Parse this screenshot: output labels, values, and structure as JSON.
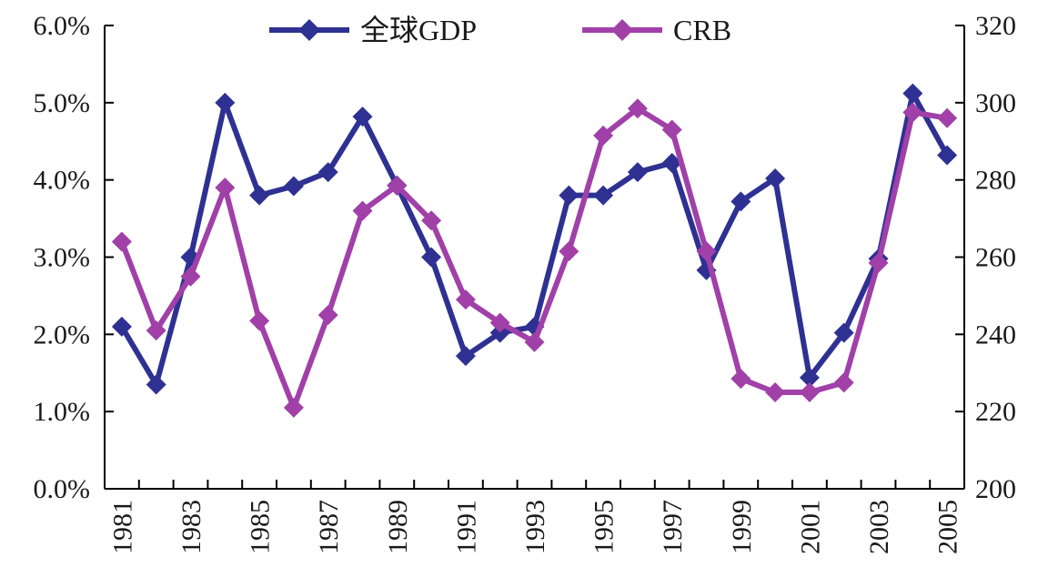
{
  "chart_data": {
    "type": "line",
    "title": "",
    "xlabel": "",
    "ylabel": "",
    "x": [
      1981,
      1982,
      1983,
      1984,
      1985,
      1986,
      1987,
      1988,
      1989,
      1990,
      1991,
      1992,
      1993,
      1994,
      1995,
      1996,
      1997,
      1998,
      1999,
      2000,
      2001,
      2002,
      2003,
      2004,
      2005
    ],
    "x_tick_labels": [
      "1981",
      "1983",
      "1985",
      "1987",
      "1989",
      "1991",
      "1993",
      "1995",
      "1997",
      "1999",
      "2001",
      "2003",
      "2005"
    ],
    "y_left": {
      "range": [
        0,
        6
      ],
      "tick_labels": [
        "0.0%",
        "1.0%",
        "2.0%",
        "3.0%",
        "4.0%",
        "5.0%",
        "6.0%"
      ]
    },
    "y_right": {
      "range": [
        200,
        320
      ],
      "tick_labels": [
        "200",
        "220",
        "240",
        "260",
        "280",
        "300",
        "320"
      ]
    },
    "grid": false,
    "legend_position": "top",
    "series": [
      {
        "name": "全球GDP",
        "axis": "left",
        "unit": "%",
        "color": "#2e3192",
        "marker": "diamond",
        "values": [
          2.1,
          1.35,
          3.0,
          5.0,
          3.8,
          3.92,
          4.1,
          4.82,
          3.93,
          3.0,
          1.72,
          2.02,
          2.1,
          3.8,
          3.8,
          4.1,
          4.22,
          2.83,
          3.72,
          4.02,
          1.44,
          2.02,
          2.98,
          5.12,
          4.32
        ]
      },
      {
        "name": "CRB",
        "axis": "right",
        "color": "#a040a8",
        "marker": "diamond",
        "values": [
          264,
          241,
          255,
          278,
          243.5,
          221,
          245,
          272,
          278.5,
          269.5,
          249,
          243,
          238,
          261.5,
          291.5,
          298.5,
          293,
          261.5,
          228.5,
          225,
          225,
          227.5,
          258.5,
          297.5,
          296
        ]
      }
    ]
  }
}
